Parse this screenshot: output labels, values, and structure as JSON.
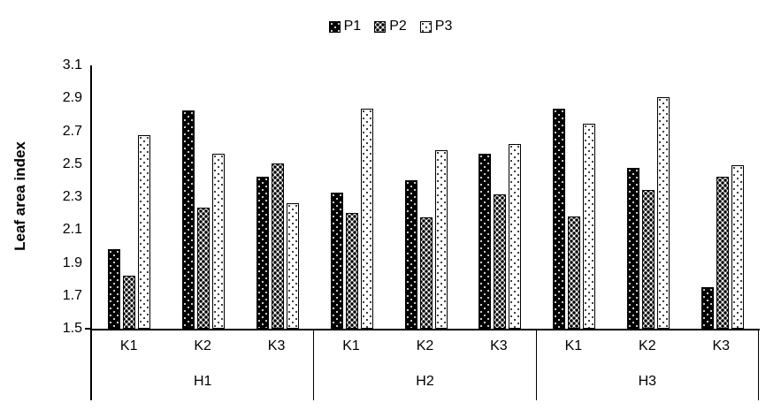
{
  "chart_data": {
    "type": "bar",
    "title": "",
    "ylabel": "Leaf area index",
    "xlabel": "",
    "ylim": [
      1.5,
      3.1
    ],
    "ytick_labels": [
      "1.5",
      "1.7",
      "1.9",
      "2.1",
      "2.3",
      "2.5",
      "2.7",
      "2.9",
      "3.1"
    ],
    "grid": false,
    "legend_position": "top-center",
    "group_labels": [
      "H1",
      "H2",
      "H3"
    ],
    "subgroup_labels": [
      "K1",
      "K2",
      "K3"
    ],
    "categories": [
      "H1-K1",
      "H1-K2",
      "H1-K3",
      "H2-K1",
      "H2-K2",
      "H2-K3",
      "H3-K1",
      "H3-K2",
      "H3-K3"
    ],
    "series": [
      {
        "name": "P1",
        "pattern": "black-with-white-dots",
        "values": [
          1.99,
          2.83,
          2.43,
          2.33,
          2.41,
          2.57,
          2.84,
          2.48,
          1.76
        ]
      },
      {
        "name": "P2",
        "pattern": "dense-black-dots-on-white",
        "values": [
          1.83,
          2.24,
          2.51,
          2.21,
          2.18,
          2.32,
          2.19,
          2.35,
          2.43
        ]
      },
      {
        "name": "P3",
        "pattern": "sparse-black-dots-on-white",
        "values": [
          2.68,
          2.57,
          2.27,
          2.84,
          2.59,
          2.63,
          2.75,
          2.91,
          2.5
        ]
      }
    ],
    "colors": {
      "foreground": "#000000",
      "background": "#ffffff"
    }
  }
}
